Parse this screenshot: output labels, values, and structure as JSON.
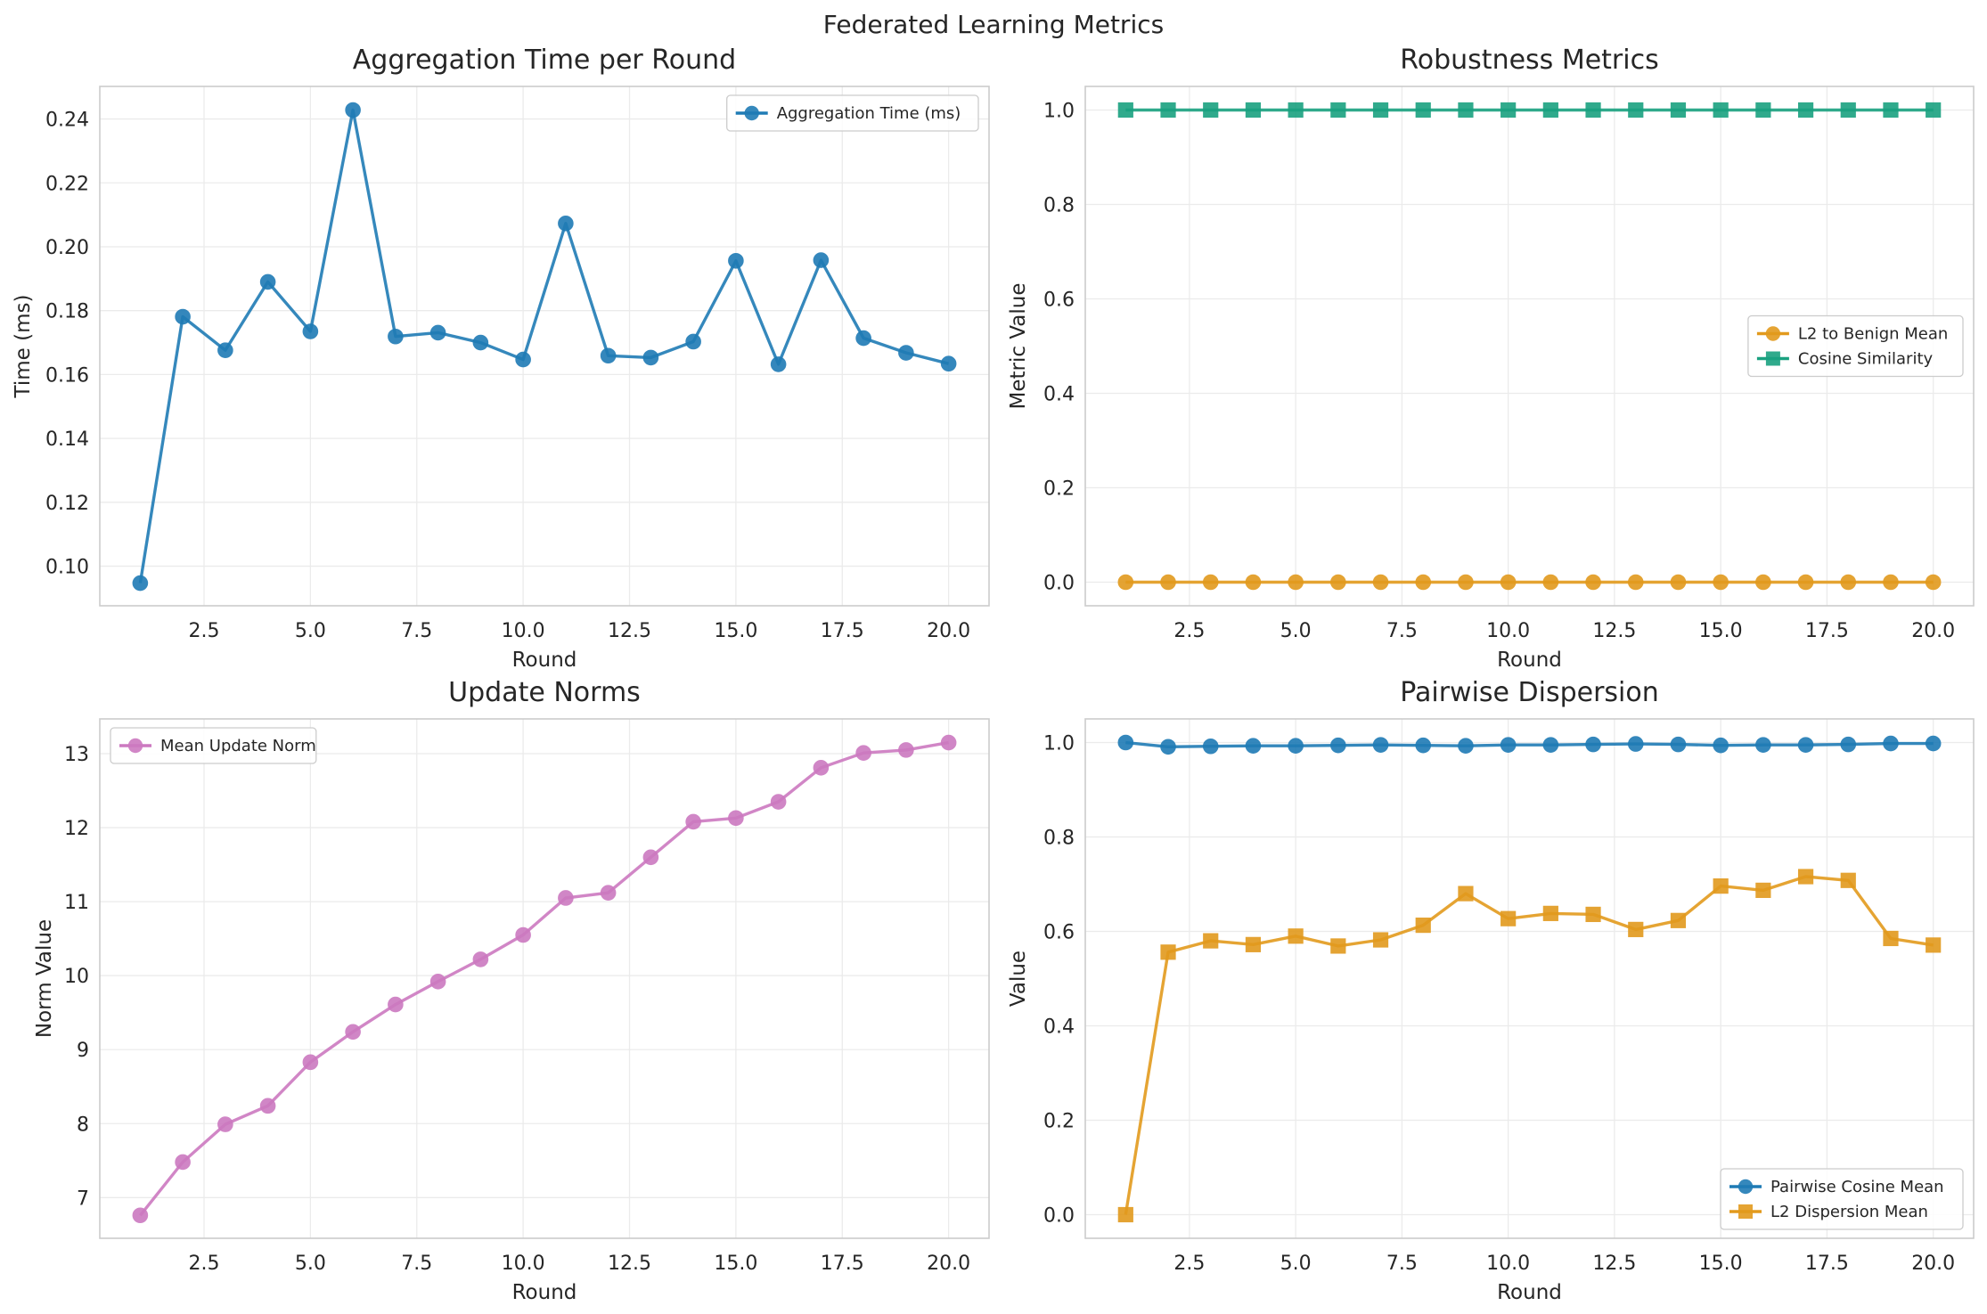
{
  "figure": {
    "title": "Federated Learning Metrics"
  },
  "chart_data": [
    {
      "type": "line",
      "title": "Aggregation Time per Round",
      "xlabel": "Round",
      "ylabel": "Time (ms)",
      "xlim": [
        0.05,
        20.95
      ],
      "ylim": [
        0.0876,
        0.2502
      ],
      "xticks": [
        2.5,
        5.0,
        7.5,
        10.0,
        12.5,
        15.0,
        17.5,
        20.0
      ],
      "yticks": [
        0.1,
        0.12,
        0.14,
        0.16,
        0.18,
        0.2,
        0.22,
        0.24
      ],
      "ydecimals": 2,
      "legend_position": "upper-right",
      "grid": true,
      "x": [
        1,
        2,
        3,
        4,
        5,
        6,
        7,
        8,
        9,
        10,
        11,
        12,
        13,
        14,
        15,
        16,
        17,
        18,
        19,
        20
      ],
      "series": [
        {
          "name": "Aggregation Time (ms)",
          "color": "#1f7bb5",
          "marker": "circle",
          "values": [
            0.0947,
            0.1781,
            0.1676,
            0.189,
            0.1735,
            0.2428,
            0.1719,
            0.1731,
            0.17,
            0.1647,
            0.2073,
            0.1659,
            0.1653,
            0.1703,
            0.1956,
            0.1632,
            0.1958,
            0.1714,
            0.1668,
            0.1634
          ]
        }
      ]
    },
    {
      "type": "line",
      "title": "Robustness Metrics",
      "xlabel": "Round",
      "ylabel": "Metric Value",
      "xlim": [
        0.05,
        20.95
      ],
      "ylim": [
        -0.05,
        1.05
      ],
      "xticks": [
        2.5,
        5.0,
        7.5,
        10.0,
        12.5,
        15.0,
        17.5,
        20.0
      ],
      "yticks": [
        0.0,
        0.2,
        0.4,
        0.6,
        0.8,
        1.0
      ],
      "ydecimals": 1,
      "legend_position": "center-right",
      "grid": true,
      "x": [
        1,
        2,
        3,
        4,
        5,
        6,
        7,
        8,
        9,
        10,
        11,
        12,
        13,
        14,
        15,
        16,
        17,
        18,
        19,
        20
      ],
      "series": [
        {
          "name": "L2 to Benign Mean",
          "color": "#e29a1d",
          "marker": "circle",
          "values": [
            0,
            0,
            0,
            0,
            0,
            0,
            0,
            0,
            0,
            0,
            0,
            0,
            0,
            0,
            0,
            0,
            0,
            0,
            0,
            0
          ]
        },
        {
          "name": "Cosine Similarity",
          "color": "#1aa180",
          "marker": "square",
          "values": [
            1,
            1,
            1,
            1,
            1,
            1,
            1,
            1,
            1,
            1,
            1,
            1,
            1,
            1,
            1,
            1,
            1,
            1,
            1,
            1
          ]
        }
      ]
    },
    {
      "type": "line",
      "title": "Update Norms",
      "xlabel": "Round",
      "ylabel": "Norm Value",
      "xlim": [
        0.05,
        20.95
      ],
      "ylim": [
        6.45,
        13.47
      ],
      "xticks": [
        2.5,
        5.0,
        7.5,
        10.0,
        12.5,
        15.0,
        17.5,
        20.0
      ],
      "yticks": [
        7,
        8,
        9,
        10,
        11,
        12,
        13
      ],
      "ydecimals": 0,
      "legend_position": "upper-left",
      "grid": true,
      "x": [
        1,
        2,
        3,
        4,
        5,
        6,
        7,
        8,
        9,
        10,
        11,
        12,
        13,
        14,
        15,
        16,
        17,
        18,
        19,
        20
      ],
      "series": [
        {
          "name": "Mean Update Norm",
          "color": "#cc79c0",
          "marker": "circle",
          "values": [
            6.76,
            7.48,
            7.99,
            8.24,
            8.83,
            9.24,
            9.61,
            9.92,
            10.22,
            10.55,
            11.05,
            11.12,
            11.6,
            12.08,
            12.13,
            12.35,
            12.81,
            13.01,
            13.05,
            13.15
          ]
        }
      ]
    },
    {
      "type": "line",
      "title": "Pairwise Dispersion",
      "xlabel": "Round",
      "ylabel": "Value",
      "xlim": [
        0.05,
        20.95
      ],
      "ylim": [
        -0.05,
        1.05
      ],
      "xticks": [
        2.5,
        5.0,
        7.5,
        10.0,
        12.5,
        15.0,
        17.5,
        20.0
      ],
      "yticks": [
        0.0,
        0.2,
        0.4,
        0.6,
        0.8,
        1.0
      ],
      "ydecimals": 1,
      "legend_position": "lower-right",
      "grid": true,
      "x": [
        1,
        2,
        3,
        4,
        5,
        6,
        7,
        8,
        9,
        10,
        11,
        12,
        13,
        14,
        15,
        16,
        17,
        18,
        19,
        20
      ],
      "series": [
        {
          "name": "Pairwise Cosine Mean",
          "color": "#1f7bb5",
          "marker": "circle",
          "values": [
            1.0,
            0.991,
            0.992,
            0.993,
            0.993,
            0.994,
            0.995,
            0.994,
            0.993,
            0.995,
            0.995,
            0.996,
            0.997,
            0.996,
            0.994,
            0.995,
            0.995,
            0.996,
            0.998,
            0.998
          ]
        },
        {
          "name": "L2 Dispersion Mean",
          "color": "#e29a1d",
          "marker": "square",
          "values": [
            0.0,
            0.556,
            0.58,
            0.572,
            0.59,
            0.569,
            0.582,
            0.613,
            0.68,
            0.627,
            0.638,
            0.636,
            0.604,
            0.623,
            0.696,
            0.687,
            0.716,
            0.708,
            0.585,
            0.571
          ]
        }
      ]
    }
  ]
}
